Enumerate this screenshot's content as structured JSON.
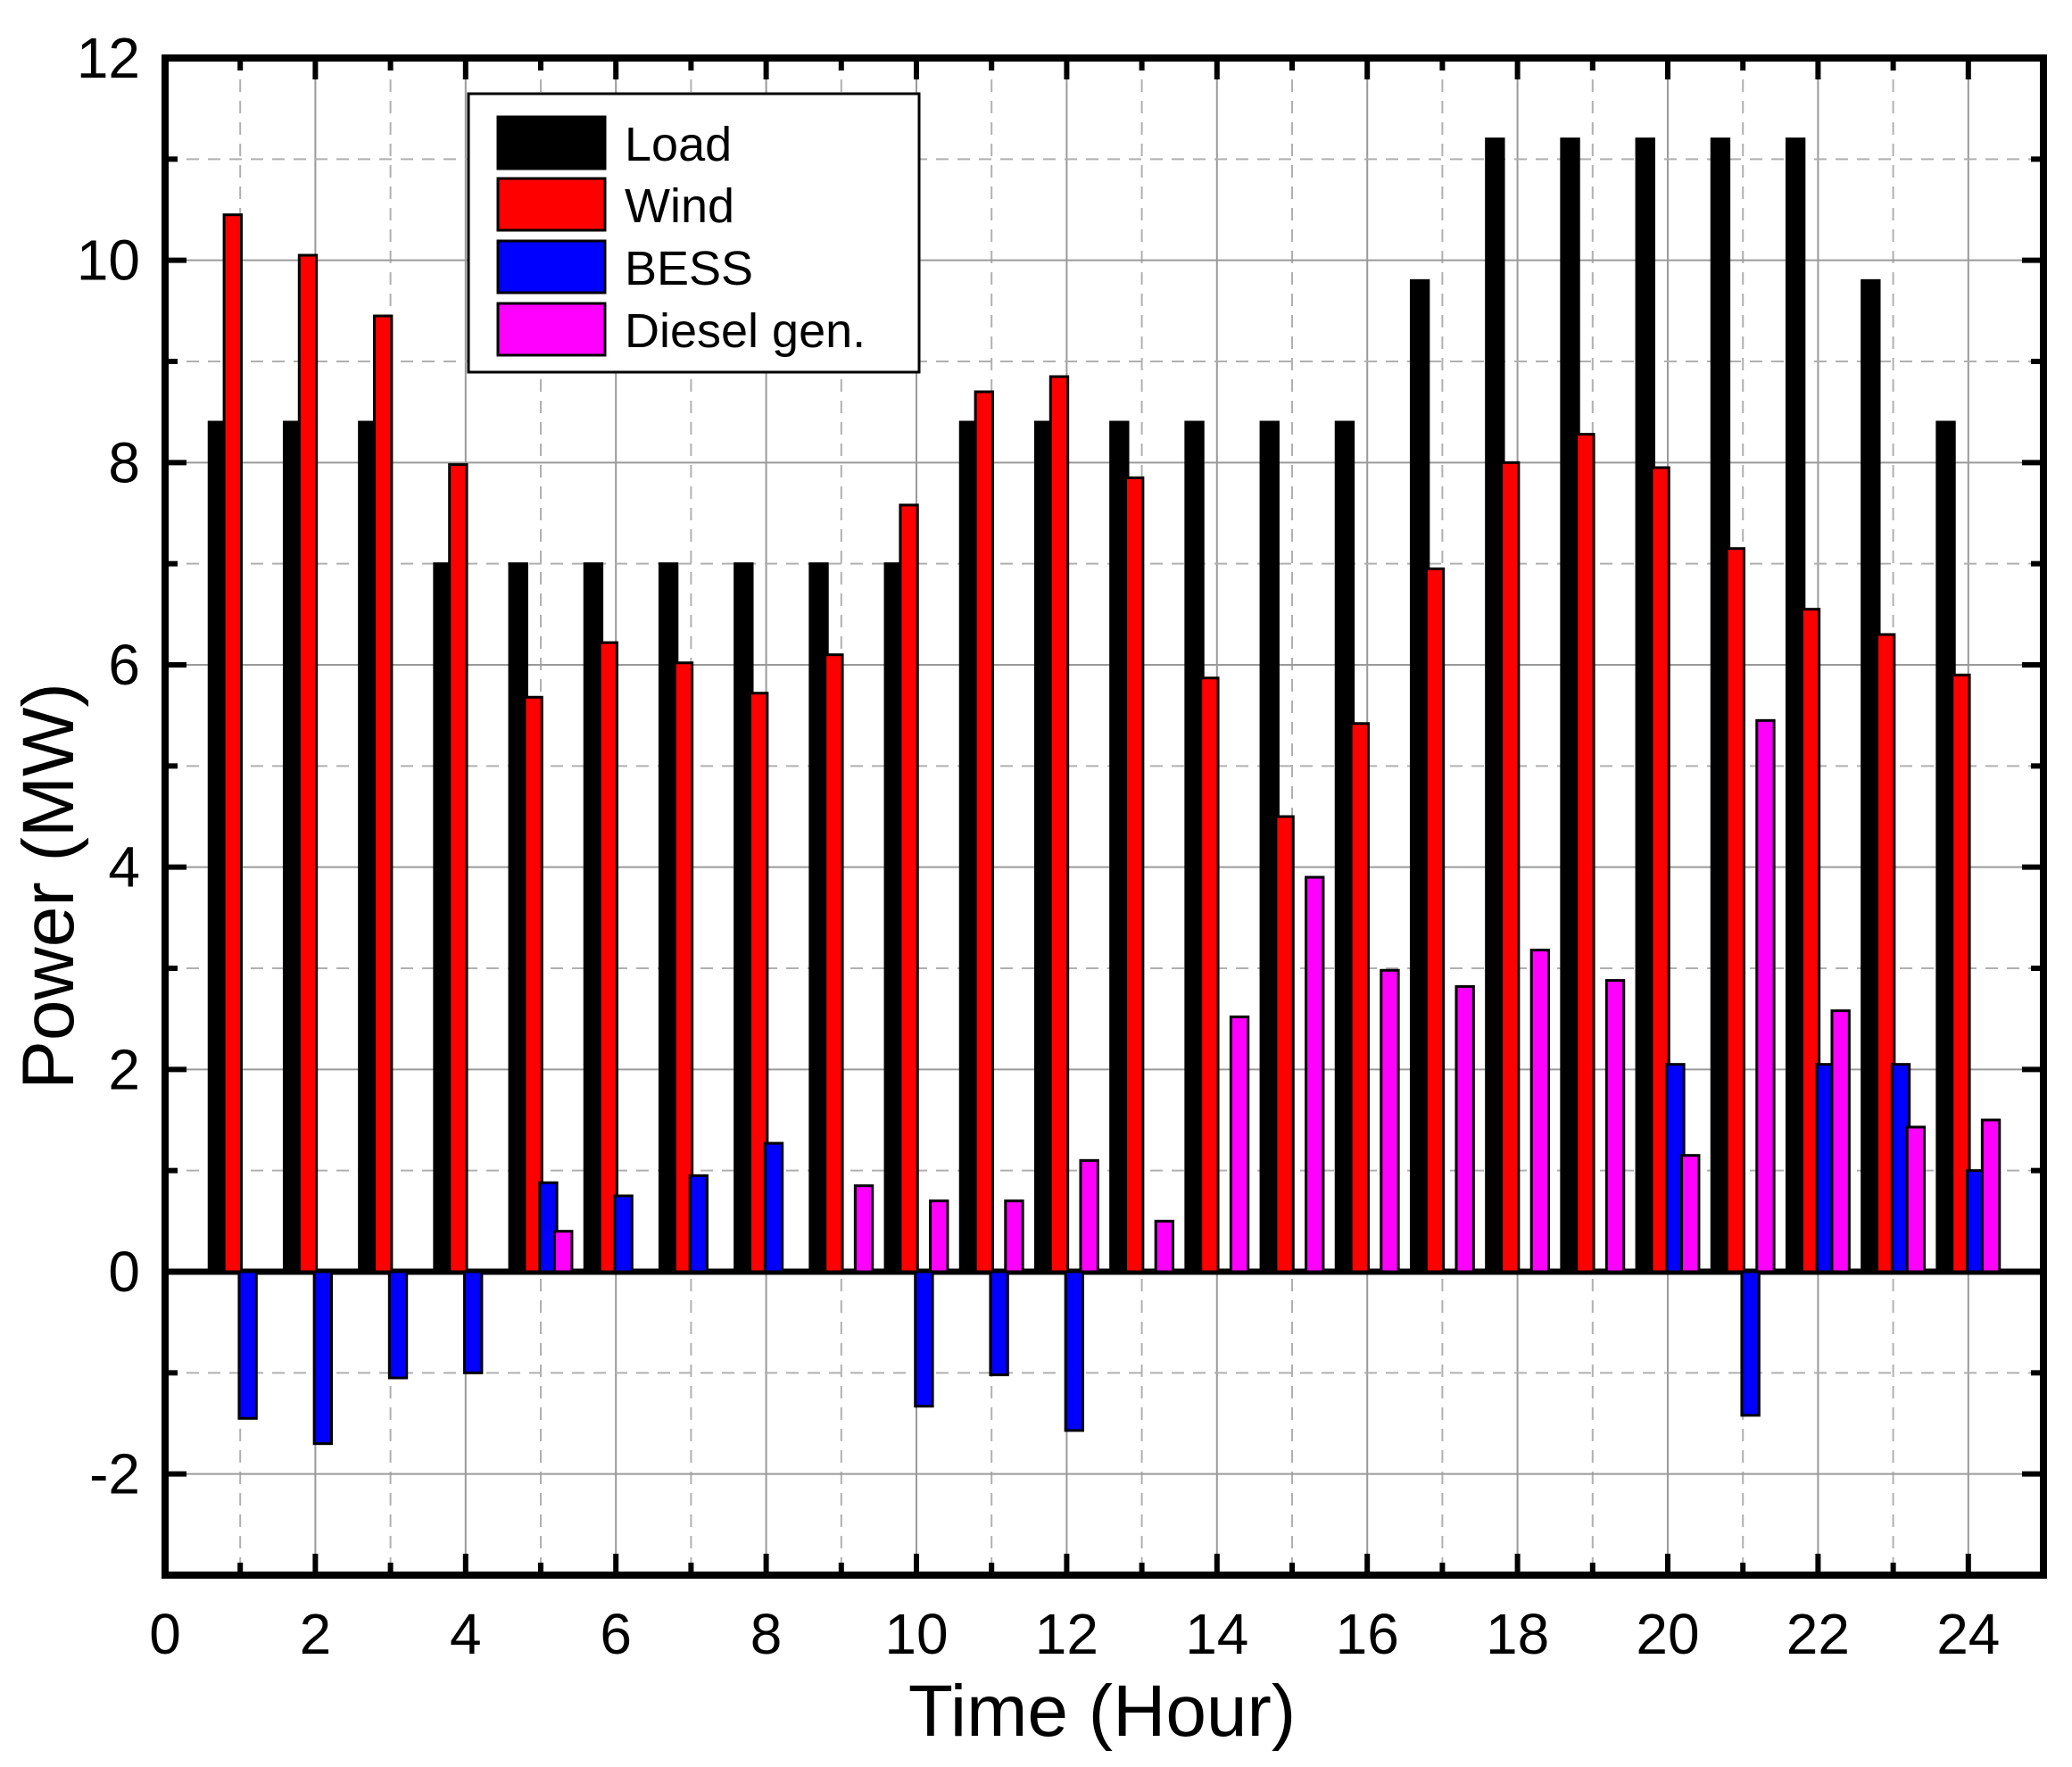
{
  "chart_data": {
    "type": "bar",
    "title": "",
    "xlabel": "Time (Hour)",
    "ylabel": "Power (MW)",
    "xlim": [
      0,
      25
    ],
    "ylim": [
      -3,
      12
    ],
    "x_ticks": [
      0,
      2,
      4,
      6,
      8,
      10,
      12,
      14,
      16,
      18,
      20,
      22,
      24
    ],
    "x_tick_labels": [
      "0",
      "2",
      "4",
      "6",
      "8",
      "10",
      "12",
      "14",
      "16",
      "18",
      "20",
      "22",
      "24"
    ],
    "y_ticks": [
      -2,
      0,
      2,
      4,
      6,
      8,
      10,
      12
    ],
    "y_tick_labels": [
      "-2",
      "0",
      "2",
      "4",
      "6",
      "8",
      "10",
      "12"
    ],
    "grid": true,
    "legend_position": "top-left",
    "categories": [
      1,
      2,
      3,
      4,
      5,
      6,
      7,
      8,
      9,
      10,
      11,
      12,
      13,
      14,
      15,
      16,
      17,
      18,
      19,
      20,
      21,
      22,
      23,
      24
    ],
    "series": [
      {
        "name": "Load",
        "color": "#000000",
        "values": [
          8.4,
          8.4,
          8.4,
          7.0,
          7.0,
          7.0,
          7.0,
          7.0,
          7.0,
          7.0,
          8.4,
          8.4,
          8.4,
          8.4,
          8.4,
          8.4,
          9.8,
          11.2,
          11.2,
          11.2,
          11.2,
          11.2,
          9.8,
          8.4
        ]
      },
      {
        "name": "Wind",
        "color": "#ff0000",
        "values": [
          10.45,
          10.05,
          9.45,
          7.98,
          5.68,
          6.22,
          6.02,
          5.72,
          6.1,
          7.58,
          8.7,
          8.85,
          7.85,
          5.87,
          4.5,
          5.42,
          6.95,
          8.0,
          8.28,
          7.95,
          7.15,
          6.55,
          6.3,
          5.9
        ]
      },
      {
        "name": "BESS",
        "color": "#0000ff",
        "values": [
          -1.45,
          -1.7,
          -1.05,
          -1.0,
          0.88,
          0.75,
          0.95,
          1.27,
          0.0,
          -1.33,
          -1.02,
          -1.57,
          0.0,
          0.0,
          0.0,
          0.0,
          0.0,
          0.0,
          0.0,
          2.05,
          -1.42,
          2.05,
          2.05,
          1.0
        ]
      },
      {
        "name": "Diesel gen.",
        "color": "#ff00ff",
        "values": [
          0.0,
          0.0,
          0.0,
          0.0,
          0.4,
          0.0,
          0.0,
          0.0,
          0.85,
          0.7,
          0.7,
          1.1,
          0.5,
          2.52,
          3.9,
          2.98,
          2.82,
          3.18,
          2.88,
          1.15,
          5.45,
          2.58,
          1.43,
          1.5
        ]
      }
    ]
  }
}
